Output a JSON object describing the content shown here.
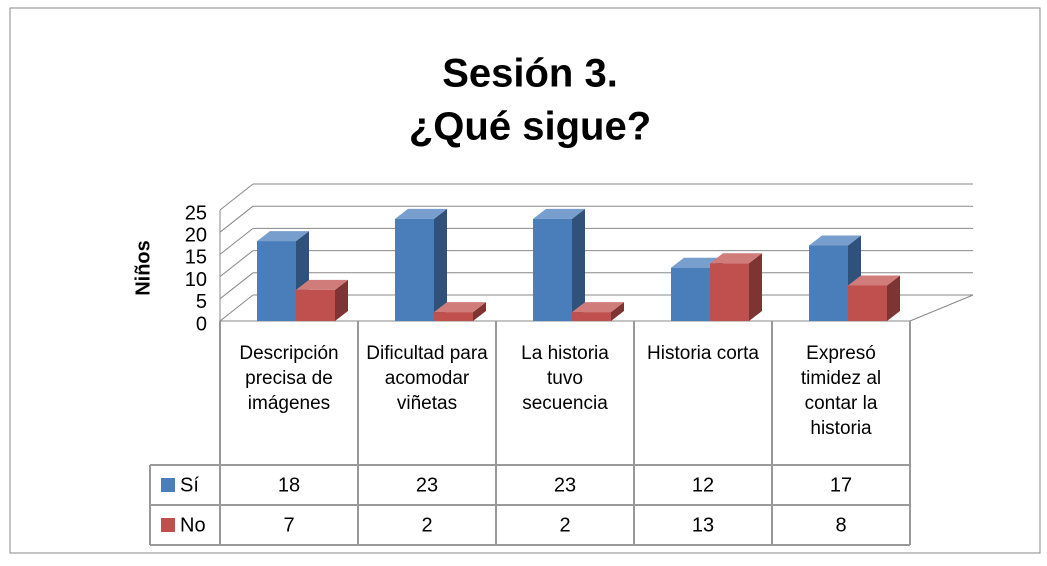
{
  "chart_data": {
    "type": "bar3d",
    "title": [
      "Sesión 3.",
      "¿Qué sigue?"
    ],
    "ylabel": "Niños",
    "categories": [
      "Descripción precisa de imágenes",
      "Dificultad para acomodar viñetas",
      "La historia tuvo secuencia",
      "Historia corta",
      "Expresó timidez al contar la historia"
    ],
    "series": [
      {
        "name": "Sí",
        "color": "#4a7ebb",
        "values": [
          18,
          23,
          23,
          12,
          17
        ]
      },
      {
        "name": "No",
        "color": "#c0504d",
        "values": [
          7,
          2,
          2,
          13,
          8
        ]
      }
    ],
    "ylim": [
      0,
      25
    ],
    "yticks": [
      0,
      5,
      10,
      15,
      20,
      25
    ],
    "grid": true,
    "data_table": true
  }
}
